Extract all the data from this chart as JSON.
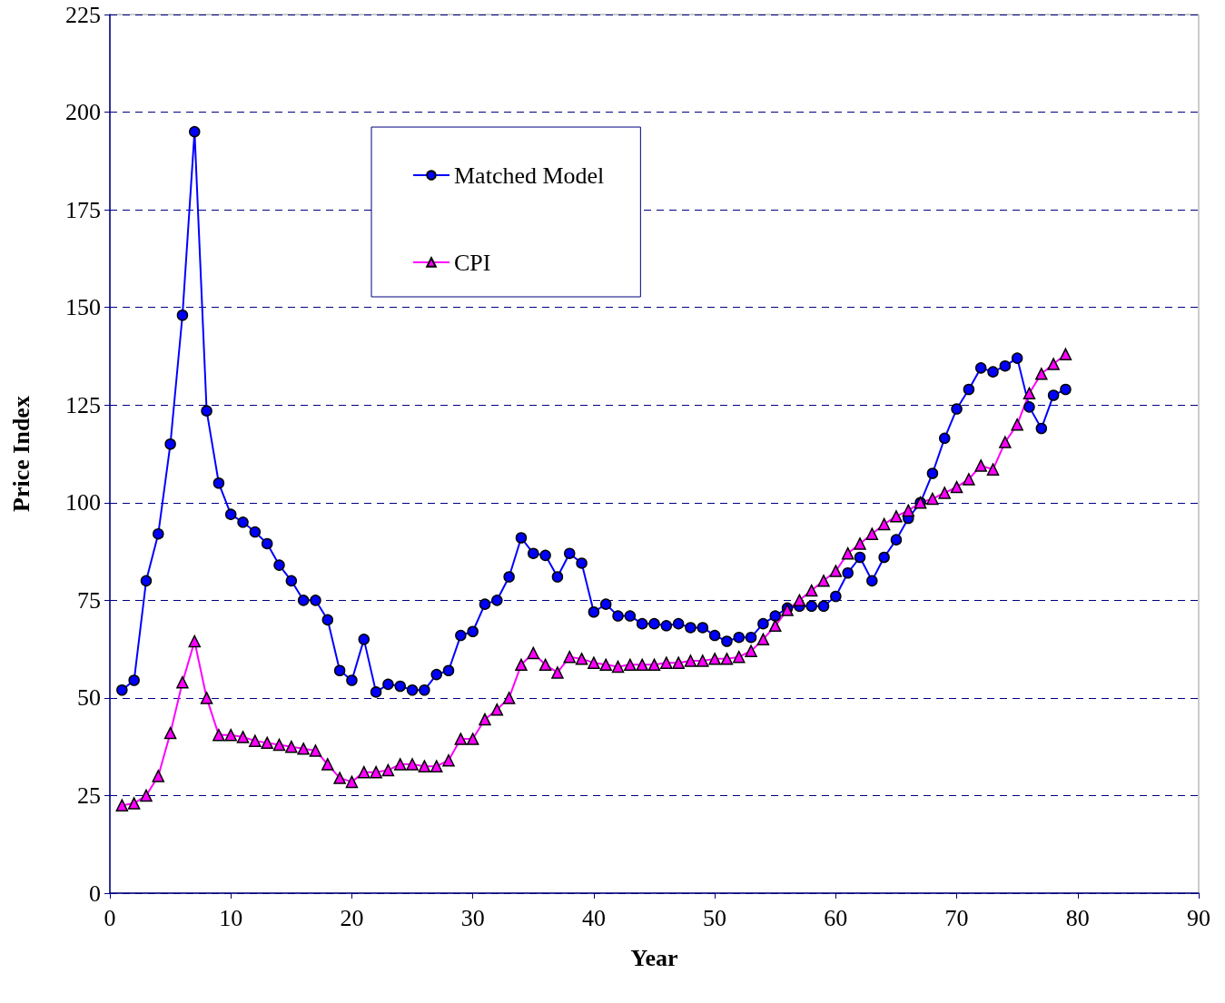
{
  "chart_data": {
    "type": "line",
    "xlabel": "Year",
    "ylabel": "Price Index",
    "x": [
      1,
      2,
      3,
      4,
      5,
      6,
      7,
      8,
      9,
      10,
      11,
      12,
      13,
      14,
      15,
      16,
      17,
      18,
      19,
      20,
      21,
      22,
      23,
      24,
      25,
      26,
      27,
      28,
      29,
      30,
      31,
      32,
      33,
      34,
      35,
      36,
      37,
      38,
      39,
      40,
      41,
      42,
      43,
      44,
      45,
      46,
      47,
      48,
      49,
      50,
      51,
      52,
      53,
      54,
      55,
      56,
      57,
      58,
      59,
      60,
      61,
      62,
      63,
      64,
      65,
      66,
      67,
      68,
      69,
      70,
      71,
      72,
      73,
      74,
      75,
      76,
      77,
      78,
      79
    ],
    "series": [
      {
        "name": "Matched Model",
        "color": "#0000ff",
        "marker": "circle",
        "values": [
          52,
          54.5,
          80,
          92,
          115,
          148,
          195,
          123.5,
          105,
          97,
          95,
          92.5,
          89.5,
          84,
          80,
          75,
          75,
          70,
          57,
          54.5,
          65,
          51.5,
          53.5,
          53,
          52,
          52,
          56,
          57,
          66,
          67,
          74,
          75,
          81,
          91,
          87,
          86.5,
          81,
          87,
          84.5,
          72,
          74,
          71,
          71,
          69,
          69,
          68.5,
          69,
          68,
          68,
          66,
          64.5,
          65.5,
          65.5,
          69,
          71,
          73,
          73.5,
          73.5,
          73.5,
          76,
          82,
          86,
          80,
          86,
          90.5,
          96,
          100,
          107.5,
          116.5,
          124,
          129,
          134.5,
          133.5,
          135,
          137,
          124.5,
          119,
          127.5,
          129
        ]
      },
      {
        "name": "CPI",
        "color": "#ff00ff",
        "marker": "triangle",
        "values": [
          22.5,
          23,
          25,
          30,
          41,
          54,
          64.5,
          50,
          40.5,
          40.5,
          40,
          39,
          38.5,
          38,
          37.5,
          37,
          36.5,
          33,
          29.5,
          28.5,
          31,
          31,
          31.5,
          33,
          33,
          32.5,
          32.5,
          34,
          39.5,
          39.5,
          44.5,
          47,
          50,
          58.5,
          61.5,
          58.5,
          56.5,
          60.5,
          60,
          59,
          58.5,
          58,
          58.5,
          58.5,
          58.5,
          59,
          59,
          59.5,
          59.5,
          60,
          60,
          60.5,
          62,
          65,
          68.5,
          72.5,
          75,
          77.5,
          80,
          82.5,
          87,
          89.5,
          92,
          94.5,
          96.5,
          98,
          100,
          101,
          102.5,
          104,
          106,
          109.5,
          108.5,
          115.5,
          120,
          128,
          133,
          135.5,
          138
        ]
      }
    ],
    "xlim": [
      0,
      90
    ],
    "xticks": [
      0,
      10,
      20,
      30,
      40,
      50,
      60,
      70,
      80,
      90
    ],
    "ylim": [
      0,
      225
    ],
    "yticks": [
      0,
      25,
      50,
      75,
      100,
      125,
      150,
      175,
      200,
      225
    ],
    "grid": "y",
    "legend": "top",
    "line_style": "solid"
  }
}
